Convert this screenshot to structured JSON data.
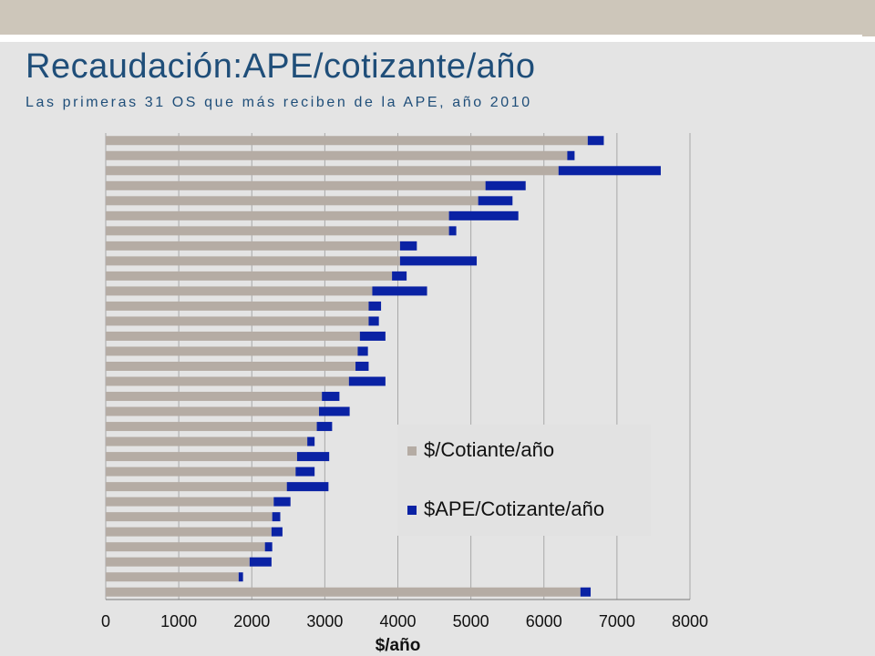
{
  "header": {
    "title": "Recaudación:APE/cotizante/año",
    "subtitle": "Las primeras 31 OS que más reciben de la APE, año 2010"
  },
  "colors": {
    "series_cotizante": "#b5aca4",
    "series_ape": "#0a22a4",
    "title": "#1f4e79",
    "grid": "#a8a8a8"
  },
  "chart_data": {
    "type": "bar",
    "orientation": "horizontal",
    "stacked": true,
    "xlabel": "$/año",
    "xlim": [
      0,
      8000
    ],
    "xticks": [
      0,
      1000,
      2000,
      3000,
      4000,
      5000,
      6000,
      7000,
      8000
    ],
    "grid": "vertical",
    "legend_position": "lower-right",
    "series": [
      {
        "name": "$/Cotiante/año",
        "values": [
          6600,
          6320,
          6200,
          5200,
          5100,
          4700,
          4700,
          4030,
          4030,
          3920,
          3650,
          3600,
          3600,
          3480,
          3450,
          3420,
          3330,
          2960,
          2920,
          2890,
          2760,
          2620,
          2600,
          2480,
          2300,
          2280,
          2270,
          2180,
          1970,
          1820,
          6500
        ]
      },
      {
        "name": "$APE/Cotizante/año",
        "values": [
          220,
          100,
          1400,
          550,
          470,
          950,
          100,
          230,
          1050,
          200,
          750,
          170,
          140,
          350,
          140,
          180,
          500,
          240,
          420,
          210,
          100,
          440,
          260,
          570,
          230,
          110,
          150,
          100,
          300,
          60,
          140
        ]
      }
    ]
  }
}
